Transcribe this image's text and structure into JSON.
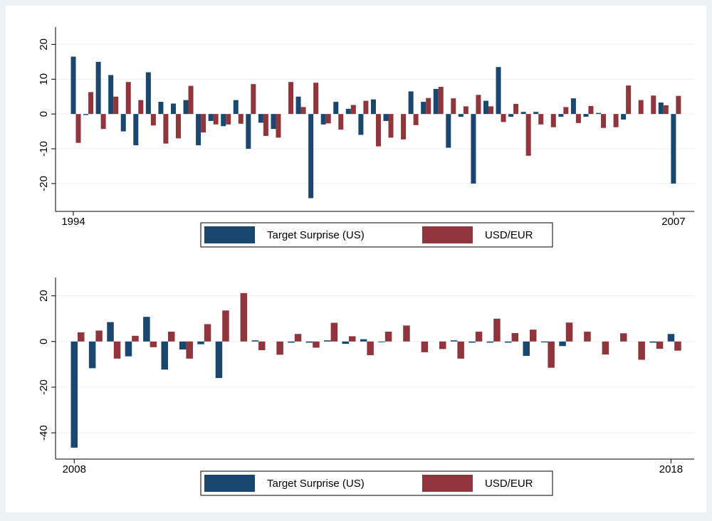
{
  "chart_data": [
    {
      "type": "bar",
      "categories": [
        "1994",
        null,
        null,
        null,
        null,
        null,
        null,
        null,
        null,
        null,
        null,
        null,
        null,
        null,
        null,
        null,
        null,
        null,
        null,
        null,
        null,
        null,
        null,
        null,
        null,
        null,
        null,
        null,
        null,
        null,
        null,
        null,
        null,
        null,
        null,
        null,
        null,
        null,
        null,
        null,
        null,
        null,
        null,
        null,
        null,
        null,
        null,
        null,
        "2007"
      ],
      "series": [
        {
          "name": "Target Surprise (US)",
          "color": "#1a476f",
          "values": [
            16.5,
            -0.3,
            15,
            11.2,
            -5,
            -9,
            12,
            3.5,
            3,
            4,
            -9,
            -2,
            -3.5,
            4,
            -10,
            -2.5,
            -4.3,
            0,
            5,
            -24.2,
            -3,
            3.5,
            1.5,
            -6,
            4.2,
            -2,
            0,
            6.5,
            3.5,
            7.2,
            -9.7,
            -0.8,
            -20,
            3.8,
            13.5,
            -0.8,
            0.6,
            0.6,
            0,
            -0.8,
            4.5,
            -0.8,
            0.3,
            0,
            -1.6,
            0,
            0,
            3.3,
            -20
          ]
        },
        {
          "name": "USD/EUR",
          "color": "#90353b",
          "values": [
            -8.3,
            6.3,
            -4.3,
            5,
            9.2,
            4,
            -3.3,
            -8.5,
            -7,
            8.1,
            -5.3,
            -3,
            -3,
            -2.8,
            8.6,
            -6.3,
            -6.8,
            9.2,
            2,
            9,
            -2.7,
            -4.5,
            2.6,
            3.8,
            -9.3,
            -6.8,
            -7.3,
            -3.2,
            4.6,
            7.8,
            4.5,
            2.2,
            5.5,
            2.2,
            -2.3,
            2.9,
            -12,
            -3,
            -3.8,
            2,
            -2.6,
            2.3,
            -4,
            -3.8,
            8.2,
            4,
            5.3,
            2.5,
            5.2
          ]
        }
      ],
      "ylim": [
        -28,
        25
      ],
      "yticks": [
        -20,
        -10,
        0,
        10,
        20
      ],
      "grid": true
    },
    {
      "type": "bar",
      "categories": [
        "2008",
        null,
        null,
        null,
        null,
        null,
        null,
        null,
        null,
        null,
        null,
        null,
        null,
        null,
        null,
        null,
        null,
        null,
        null,
        null,
        null,
        null,
        null,
        null,
        null,
        null,
        null,
        null,
        null,
        null,
        null,
        null,
        null,
        "2018"
      ],
      "series": [
        {
          "name": "Target Surprise (US)",
          "color": "#1a476f",
          "values": [
            -46.5,
            -11.7,
            8.5,
            -6.5,
            10.8,
            -12.3,
            -3.5,
            -1.2,
            -16,
            0,
            0.5,
            0,
            -0.5,
            -0.5,
            0.5,
            -1,
            1,
            -0.3,
            0,
            0,
            0,
            0.5,
            -0.5,
            -0.5,
            -0.5,
            -6.3,
            -0.4,
            -2,
            0,
            0,
            0,
            0,
            -0.5,
            3.3
          ]
        },
        {
          "name": "USD/EUR",
          "color": "#90353b",
          "values": [
            4,
            4.8,
            -7.5,
            2.5,
            -2.5,
            4.3,
            -7.5,
            7.6,
            13.6,
            21.2,
            -3.8,
            -5.8,
            3.3,
            -2.7,
            8.2,
            2.3,
            -6,
            4.3,
            7,
            -4.7,
            -3.3,
            -7.5,
            4.3,
            10,
            3.7,
            5.2,
            -11.5,
            8.3,
            4.3,
            -5.7,
            3.6,
            -8,
            -3.2,
            -4
          ]
        }
      ],
      "ylim": [
        -51.5,
        28
      ],
      "yticks": [
        -40,
        -20,
        0,
        20
      ],
      "grid": true
    }
  ]
}
